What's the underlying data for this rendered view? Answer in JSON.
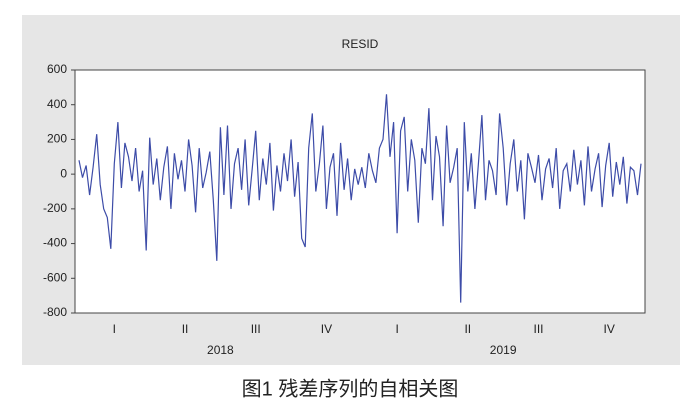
{
  "chart_data": {
    "type": "line",
    "title": "RESID",
    "caption": "图1 残差序列的自相关图",
    "ylim": [
      -800,
      600
    ],
    "yticks": [
      -800,
      -600,
      -400,
      -200,
      0,
      200,
      400,
      600
    ],
    "year_labels": [
      "2018",
      "2019"
    ],
    "categories": [
      null,
      null,
      null,
      null,
      null,
      null,
      null,
      null,
      null,
      null,
      "I",
      null,
      null,
      null,
      null,
      null,
      null,
      null,
      null,
      null,
      null,
      null,
      null,
      null,
      null,
      null,
      null,
      null,
      null,
      null,
      "II",
      null,
      null,
      null,
      null,
      null,
      null,
      null,
      null,
      null,
      null,
      null,
      null,
      null,
      null,
      null,
      null,
      null,
      null,
      null,
      "III",
      null,
      null,
      null,
      null,
      null,
      null,
      null,
      null,
      null,
      null,
      null,
      null,
      null,
      null,
      null,
      null,
      null,
      null,
      null,
      "IV",
      null,
      null,
      null,
      null,
      null,
      null,
      null,
      null,
      null,
      null,
      null,
      null,
      null,
      null,
      null,
      null,
      null,
      null,
      null,
      "I",
      null,
      null,
      null,
      null,
      null,
      null,
      null,
      null,
      null,
      null,
      null,
      null,
      null,
      null,
      null,
      null,
      null,
      null,
      null,
      "II",
      null,
      null,
      null,
      null,
      null,
      null,
      null,
      null,
      null,
      null,
      null,
      null,
      null,
      null,
      null,
      null,
      null,
      null,
      null,
      "III",
      null,
      null,
      null,
      null,
      null,
      null,
      null,
      null,
      null,
      null,
      null,
      null,
      null,
      null,
      null,
      null,
      null,
      null,
      null,
      "IV",
      null,
      null,
      null,
      null,
      null,
      null,
      null,
      null,
      null
    ],
    "series": [
      {
        "name": "RESID",
        "color": "#3d4ca8",
        "values": [
          80,
          -20,
          50,
          -120,
          40,
          230,
          -60,
          -200,
          -250,
          -430,
          60,
          300,
          -80,
          180,
          100,
          -40,
          150,
          -100,
          20,
          -440,
          210,
          -60,
          90,
          -150,
          40,
          160,
          -200,
          120,
          -30,
          80,
          -100,
          200,
          50,
          -220,
          150,
          -80,
          10,
          130,
          -150,
          -500,
          270,
          -120,
          280,
          -200,
          60,
          150,
          -90,
          200,
          -180,
          30,
          250,
          -150,
          90,
          -60,
          180,
          -210,
          50,
          -100,
          120,
          -40,
          200,
          -130,
          70,
          -370,
          -420,
          150,
          350,
          -100,
          60,
          280,
          -200,
          40,
          120,
          -240,
          180,
          -90,
          90,
          -150,
          30,
          -60,
          40,
          -80,
          120,
          20,
          -50,
          150,
          200,
          460,
          100,
          300,
          -340,
          250,
          330,
          -100,
          200,
          80,
          -280,
          150,
          60,
          380,
          -150,
          220,
          100,
          -300,
          280,
          -50,
          40,
          150,
          -740,
          300,
          -100,
          120,
          -200,
          60,
          340,
          -150,
          80,
          20,
          -120,
          350,
          150,
          -180,
          60,
          200,
          -100,
          80,
          -260,
          120,
          40,
          -50,
          110,
          -150,
          30,
          90,
          -80,
          150,
          -200,
          20,
          60,
          -100,
          140,
          -60,
          80,
          -180,
          160,
          -100,
          30,
          120,
          -190,
          50,
          180,
          -130,
          70,
          -60,
          100,
          -170,
          40,
          20,
          -120,
          60
        ]
      }
    ]
  }
}
